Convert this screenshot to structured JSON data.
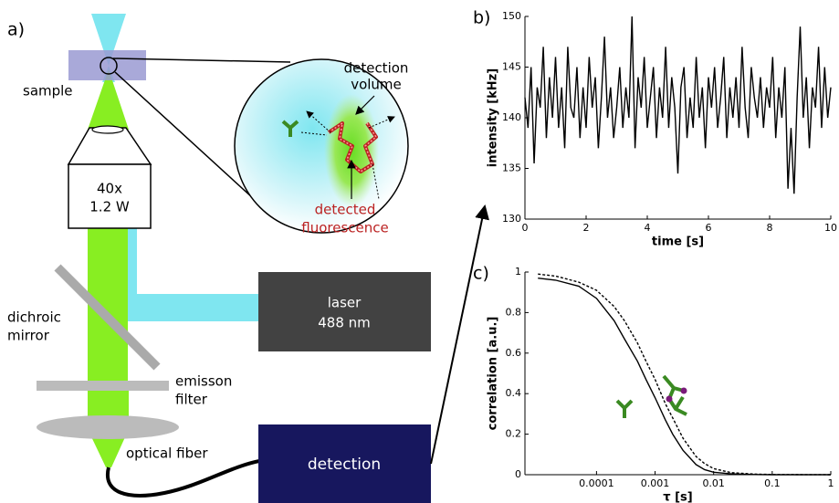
{
  "figure": {
    "panel_a": "a)",
    "sample": "sample",
    "objective": [
      "40x",
      "1.2 W"
    ],
    "detection_volume": [
      "detection",
      "volume"
    ],
    "detected_fluorescence": [
      "detected",
      "fluorescence"
    ],
    "laser": [
      "laser",
      "488 nm"
    ],
    "dichroic_mirror": [
      "dichroic",
      "mirror"
    ],
    "emission_filter": [
      "emisson",
      "filter"
    ],
    "optical_fiber": "optical fiber",
    "detection": "detection"
  },
  "chart_data": [
    {
      "type": "line",
      "panel": "b)",
      "x_label": "time [s]",
      "y_label": "intensity [kHz]",
      "color": "#000000",
      "x": [
        0,
        0.1,
        0.2,
        0.3,
        0.4,
        0.5,
        0.6,
        0.7,
        0.8,
        0.9,
        1,
        1.1,
        1.2,
        1.3,
        1.4,
        1.5,
        1.6,
        1.7,
        1.8,
        1.9,
        2,
        2.1,
        2.2,
        2.3,
        2.4,
        2.5,
        2.6,
        2.7,
        2.8,
        2.9,
        3,
        3.1,
        3.2,
        3.3,
        3.4,
        3.5,
        3.6,
        3.7,
        3.8,
        3.9,
        4,
        4.1,
        4.2,
        4.3,
        4.4,
        4.5,
        4.6,
        4.7,
        4.8,
        4.9,
        5,
        5.1,
        5.2,
        5.3,
        5.4,
        5.5,
        5.6,
        5.7,
        5.8,
        5.9,
        6,
        6.1,
        6.2,
        6.3,
        6.4,
        6.5,
        6.6,
        6.7,
        6.8,
        6.9,
        7,
        7.1,
        7.2,
        7.3,
        7.4,
        7.5,
        7.6,
        7.7,
        7.8,
        7.9,
        8,
        8.1,
        8.2,
        8.3,
        8.4,
        8.5,
        8.6,
        8.7,
        8.8,
        8.9,
        9,
        9.1,
        9.2,
        9.3,
        9.4,
        9.5,
        9.6,
        9.7,
        9.8,
        9.9,
        10
      ],
      "values": [
        142,
        139,
        145,
        135.5,
        143,
        141,
        147,
        138,
        144,
        140,
        146,
        139,
        143,
        137,
        147,
        141,
        140,
        145,
        138,
        143,
        139,
        146,
        141,
        144,
        137,
        142,
        148,
        140,
        143,
        138,
        141,
        145,
        139,
        143,
        140,
        150,
        137,
        144,
        141,
        146,
        139,
        142,
        145,
        138,
        143,
        140,
        147,
        139,
        144,
        141,
        134.5,
        143,
        145,
        138,
        142,
        139,
        146,
        140,
        143,
        137,
        144,
        141,
        145,
        139,
        142,
        146,
        138,
        143,
        140,
        144,
        139,
        147,
        141,
        138,
        145,
        142,
        140,
        144,
        139,
        143,
        141,
        146,
        138,
        143,
        140,
        145,
        133,
        139,
        132.5,
        142,
        149,
        140,
        144,
        137,
        143,
        141,
        147,
        139,
        145,
        140,
        143
      ],
      "xlim": [
        0,
        10
      ],
      "xticks": [
        0,
        2,
        4,
        6,
        8,
        10
      ],
      "ylim": [
        130,
        150
      ],
      "yticks": [
        130,
        135,
        140,
        145,
        150
      ]
    },
    {
      "type": "line",
      "panel": "c)",
      "x_label": "τ [s]",
      "y_label": "correlation [a.u.]",
      "x_scale": "log",
      "x": [
        1e-05,
        2e-05,
        5e-05,
        0.0001,
        0.0002,
        0.0003,
        0.0005,
        0.0007,
        0.001,
        0.0015,
        0.002,
        0.003,
        0.005,
        0.007,
        0.01,
        0.02,
        0.05,
        0.1,
        1
      ],
      "series": [
        {
          "color": "#000000",
          "line_style": "solid",
          "values": [
            0.97,
            0.96,
            0.93,
            0.87,
            0.76,
            0.67,
            0.56,
            0.47,
            0.38,
            0.27,
            0.2,
            0.12,
            0.05,
            0.025,
            0.012,
            0.004,
            0.001,
            0,
            0
          ]
        },
        {
          "color": "#000000",
          "line_style": "dotted",
          "values": [
            0.99,
            0.98,
            0.95,
            0.91,
            0.83,
            0.76,
            0.65,
            0.56,
            0.47,
            0.35,
            0.28,
            0.18,
            0.09,
            0.055,
            0.03,
            0.01,
            0.003,
            0.001,
            0
          ]
        }
      ],
      "xlim": [
        6e-06,
        1
      ],
      "xticks": [
        0.0001,
        0.001,
        0.01,
        0.1,
        1
      ],
      "ylim": [
        0,
        1
      ],
      "yticks": [
        0,
        0.2,
        0.4,
        0.6,
        0.8,
        1
      ]
    }
  ]
}
